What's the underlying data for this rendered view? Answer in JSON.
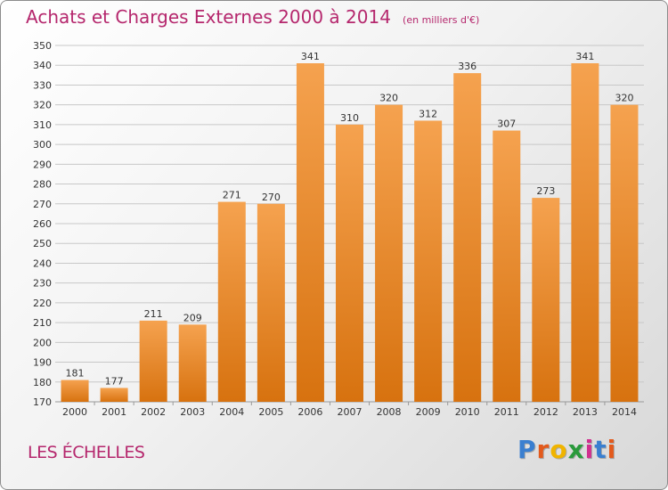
{
  "header": {
    "title": "Achats et Charges Externes 2000 à 2014",
    "unit": "(en milliers d'€)"
  },
  "footer": {
    "commune": "LES ÉCHELLES",
    "logo_letters": [
      {
        "char": "P",
        "color": "#3a7fd0"
      },
      {
        "char": "r",
        "color": "#e35a1c"
      },
      {
        "char": "o",
        "color": "#f0b400"
      },
      {
        "char": "x",
        "color": "#2a9a3c"
      },
      {
        "char": "i",
        "color": "#d12f8f"
      },
      {
        "char": "t",
        "color": "#3a7fd0"
      },
      {
        "char": "i",
        "color": "#e35a1c"
      }
    ]
  },
  "colors": {
    "bar_top": "#f5a24f",
    "bar_bottom": "#d7720f",
    "grid": "#c8c8c8",
    "axis_text": "#333333",
    "title": "#b5276d"
  },
  "chart_data": {
    "type": "bar",
    "title": "Achats et Charges Externes 2000 à 2014",
    "xlabel": "",
    "ylabel": "",
    "ylim": [
      170,
      350
    ],
    "ytick_step": 10,
    "grid": true,
    "categories": [
      "2000",
      "2001",
      "2002",
      "2003",
      "2004",
      "2005",
      "2006",
      "2007",
      "2008",
      "2009",
      "2010",
      "2011",
      "2012",
      "2013",
      "2014"
    ],
    "values": [
      181,
      177,
      211,
      209,
      271,
      270,
      341,
      310,
      320,
      312,
      336,
      307,
      273,
      341,
      320
    ]
  }
}
